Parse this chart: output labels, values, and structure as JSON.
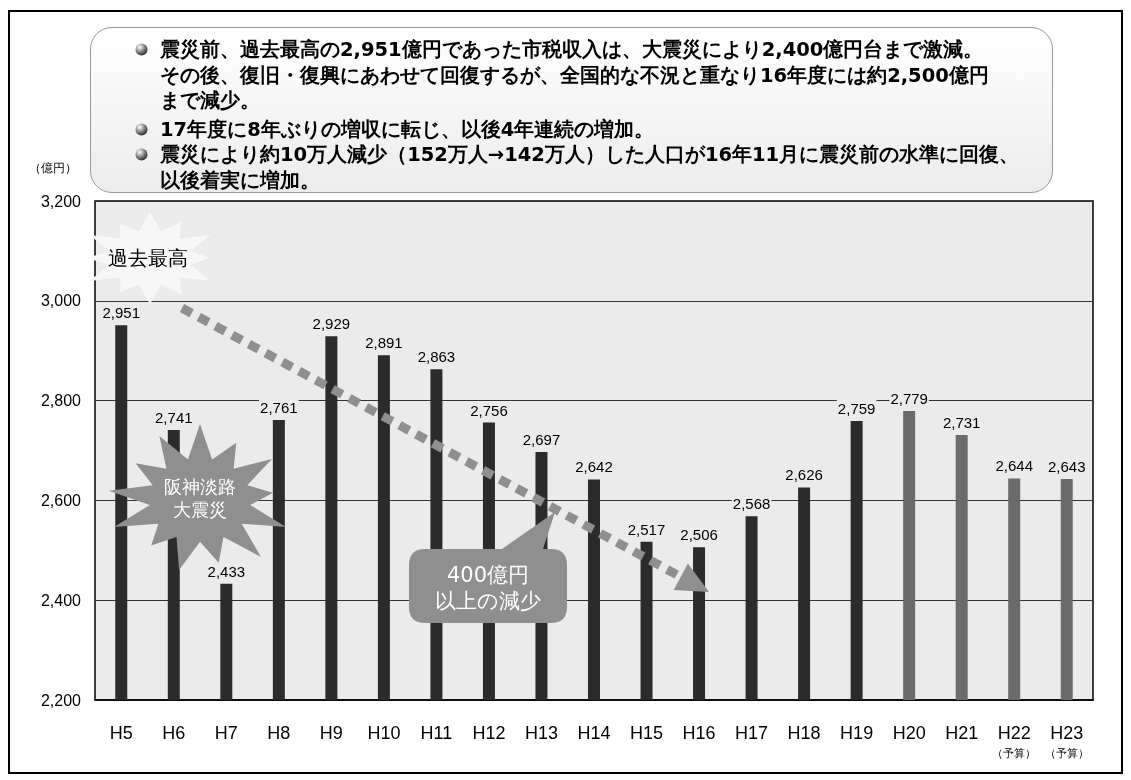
{
  "chart_data": {
    "type": "bar",
    "ylabel": "（億円）",
    "categories": [
      "H5",
      "H6",
      "H7",
      "H8",
      "H9",
      "H10",
      "H11",
      "H12",
      "H13",
      "H14",
      "H15",
      "H16",
      "H17",
      "H18",
      "H19",
      "H20",
      "H21",
      "H22\n（予算）",
      "H23\n（予算）"
    ],
    "values": [
      2951,
      2741,
      2433,
      2761,
      2929,
      2891,
      2863,
      2756,
      2697,
      2642,
      2517,
      2506,
      2568,
      2626,
      2759,
      2779,
      2731,
      2644,
      2643
    ],
    "value_labels": [
      "2,951",
      "2,741",
      "2,433",
      "2,761",
      "2,929",
      "2,891",
      "2,863",
      "2,756",
      "2,697",
      "2,642",
      "2,517",
      "2,506",
      "2,568",
      "2,626",
      "2,759",
      "2,779",
      "2,731",
      "2,644",
      "2,643"
    ],
    "colors": [
      "#2b2b2b",
      "#2b2b2b",
      "#2b2b2b",
      "#2b2b2b",
      "#2b2b2b",
      "#2b2b2b",
      "#2b2b2b",
      "#2b2b2b",
      "#2b2b2b",
      "#2b2b2b",
      "#2b2b2b",
      "#2b2b2b",
      "#2b2b2b",
      "#2b2b2b",
      "#2b2b2b",
      "#6b6b6b",
      "#6b6b6b",
      "#6b6b6b",
      "#6b6b6b"
    ],
    "ylim": [
      2200,
      3200
    ],
    "yticks": [
      {
        "value": 2200,
        "label": "2,200"
      },
      {
        "value": 2400,
        "label": "2,400"
      },
      {
        "value": 2600,
        "label": "2,600"
      },
      {
        "value": 2800,
        "label": "2,800"
      },
      {
        "value": 3000,
        "label": "3,000"
      },
      {
        "value": 3200,
        "label": "3,200"
      }
    ],
    "grid": "y",
    "annotations": [
      "震災前、過去最高の2,951億円であった市税収入は、大震災により2,400億円台まで激減。その後、復旧・復興にあわせて回復するが、全国的な不況と重なり16年度には約2,500億円まで減少。",
      "17年度に8年ぶりの増収に転じ、以後4年連続の増加。",
      "震災により約10万人減少（152万人→142万人）した人口が16年11月に震災前の水準に回復、以後着実に増加。",
      "過去最高",
      "阪神淡路大震災",
      "400億円以上の減少"
    ]
  }
}
